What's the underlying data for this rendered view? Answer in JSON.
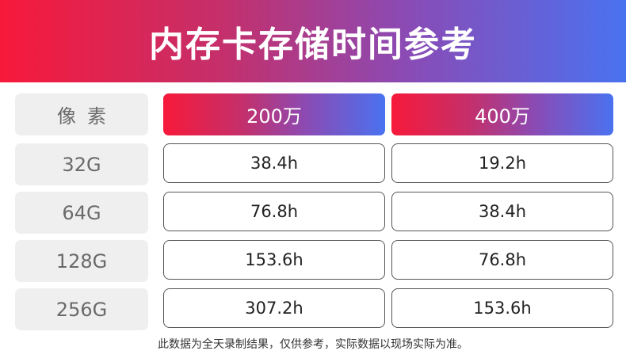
{
  "banner": {
    "title": "内存卡存储时间参考"
  },
  "table": {
    "header": {
      "label": "像素",
      "col1": "200万",
      "col2": "400万"
    },
    "rows": [
      {
        "label": "32G",
        "col1": "38.4h",
        "col2": "19.2h"
      },
      {
        "label": "64G",
        "col1": "76.8h",
        "col2": "38.4h"
      },
      {
        "label": "128G",
        "col1": "153.6h",
        "col2": "76.8h"
      },
      {
        "label": "256G",
        "col1": "307.2h",
        "col2": "153.6h"
      }
    ]
  },
  "footnote": "此数据为全天录制结果，仅供参考，实际数据以现场实际为准。",
  "colors": {
    "gradient_start": "#f7193a",
    "gradient_end": "#4a72f0",
    "label_bg": "#efefef"
  }
}
